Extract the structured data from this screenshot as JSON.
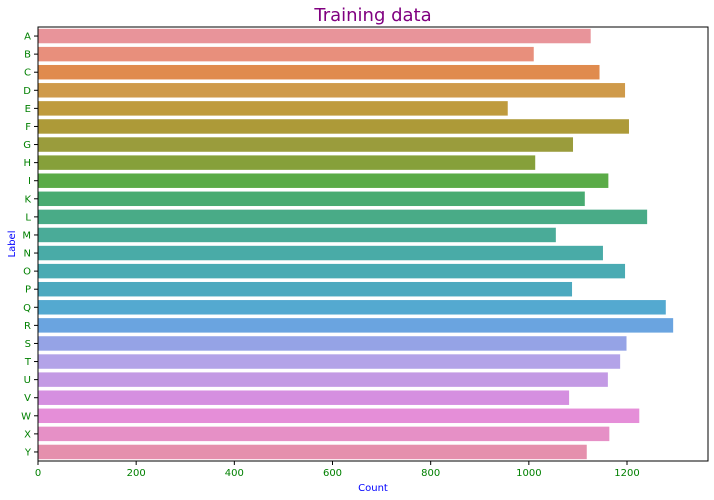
{
  "chart_data": {
    "type": "bar",
    "orientation": "horizontal",
    "title": "Training data",
    "xlabel": "Count",
    "ylabel": "Label",
    "xlim": [
      0,
      1365
    ],
    "xticks": [
      0,
      200,
      400,
      600,
      800,
      1000,
      1200
    ],
    "grid": false,
    "legend": "none",
    "categories": [
      "A",
      "B",
      "C",
      "D",
      "E",
      "F",
      "G",
      "H",
      "I",
      "K",
      "L",
      "M",
      "N",
      "O",
      "P",
      "Q",
      "R",
      "S",
      "T",
      "U",
      "V",
      "W",
      "X",
      "Y"
    ],
    "values": [
      1126,
      1010,
      1144,
      1196,
      957,
      1204,
      1090,
      1013,
      1162,
      1114,
      1241,
      1055,
      1151,
      1196,
      1088,
      1279,
      1294,
      1199,
      1186,
      1161,
      1082,
      1225,
      1164,
      1118
    ],
    "colors": [
      "#e8949a",
      "#e88f7c",
      "#e08b4e",
      "#cf9a4a",
      "#bf9b3e",
      "#ad9a38",
      "#9a9c3c",
      "#86a03a",
      "#5aab47",
      "#48ab71",
      "#49ab87",
      "#4aab98",
      "#49aba7",
      "#4aabb3",
      "#4ca9bf",
      "#54a9d0",
      "#6aa4e0",
      "#95a3e6",
      "#b3a3e8",
      "#c39ae4",
      "#d58fe0",
      "#e58ed8",
      "#e690c6",
      "#e590ad"
    ],
    "title_color": "#800080",
    "axis_label_color": "#0000ff",
    "tick_label_color": "#008000"
  }
}
